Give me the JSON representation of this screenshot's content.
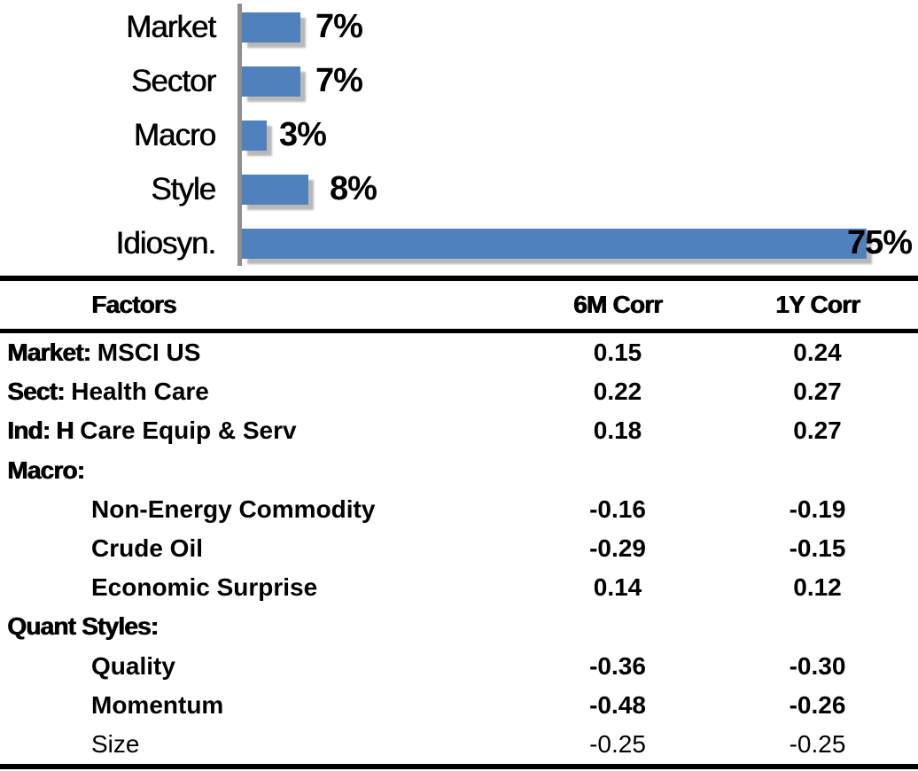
{
  "chart_data": [
    {
      "type": "bar",
      "orientation": "horizontal",
      "title": "",
      "categories": [
        "Market",
        "Sector",
        "Macro",
        "Style",
        "Idiosyn."
      ],
      "values": [
        7,
        7,
        3,
        8,
        75
      ],
      "value_labels": [
        "7%",
        "7%",
        "3%",
        "8%",
        "75%"
      ],
      "unit": "percent",
      "xlim": [
        0,
        80
      ],
      "grid": false,
      "legend": false,
      "bar_color": "#4F81BD",
      "axis_color": "#8F8F8F",
      "label_position": "outside-end"
    },
    {
      "type": "table",
      "columns": [
        "Factors",
        "6M Corr",
        "1Y Corr"
      ],
      "rows": [
        {
          "factor_bold": "Market:",
          "factor": " MSCI US",
          "corr_6m": "0.15",
          "corr_1y": "0.24"
        },
        {
          "factor_bold": "Sect:",
          "factor": " Health Care",
          "corr_6m": "0.22",
          "corr_1y": "0.27"
        },
        {
          "factor_bold": "Ind: H",
          "factor": " Care Equip & Serv",
          "corr_6m": "0.18",
          "corr_1y": "0.27"
        },
        {
          "factor_bold": "Macro:",
          "factor": "",
          "corr_6m": "",
          "corr_1y": ""
        },
        {
          "factor_bold": "",
          "factor": "Non-Energy Commodity",
          "corr_6m": "-0.16",
          "corr_1y": "-0.19"
        },
        {
          "factor_bold": "",
          "factor": "Crude Oil",
          "corr_6m": "-0.29",
          "corr_1y": "-0.15"
        },
        {
          "factor_bold": "",
          "factor": "Economic Surprise",
          "corr_6m": "0.14",
          "corr_1y": "0.12"
        },
        {
          "factor_bold": "Quant Styles:",
          "factor": "",
          "corr_6m": "",
          "corr_1y": ""
        },
        {
          "factor_bold": "",
          "factor": "Quality",
          "corr_6m": "-0.36",
          "corr_1y": "-0.30"
        },
        {
          "factor_bold": "",
          "factor": "Momentum",
          "corr_6m": "-0.48",
          "corr_1y": "-0.26"
        },
        {
          "factor_bold": "",
          "factor": "Size",
          "corr_6m": "-0.25",
          "corr_1y": "-0.25"
        }
      ]
    }
  ]
}
